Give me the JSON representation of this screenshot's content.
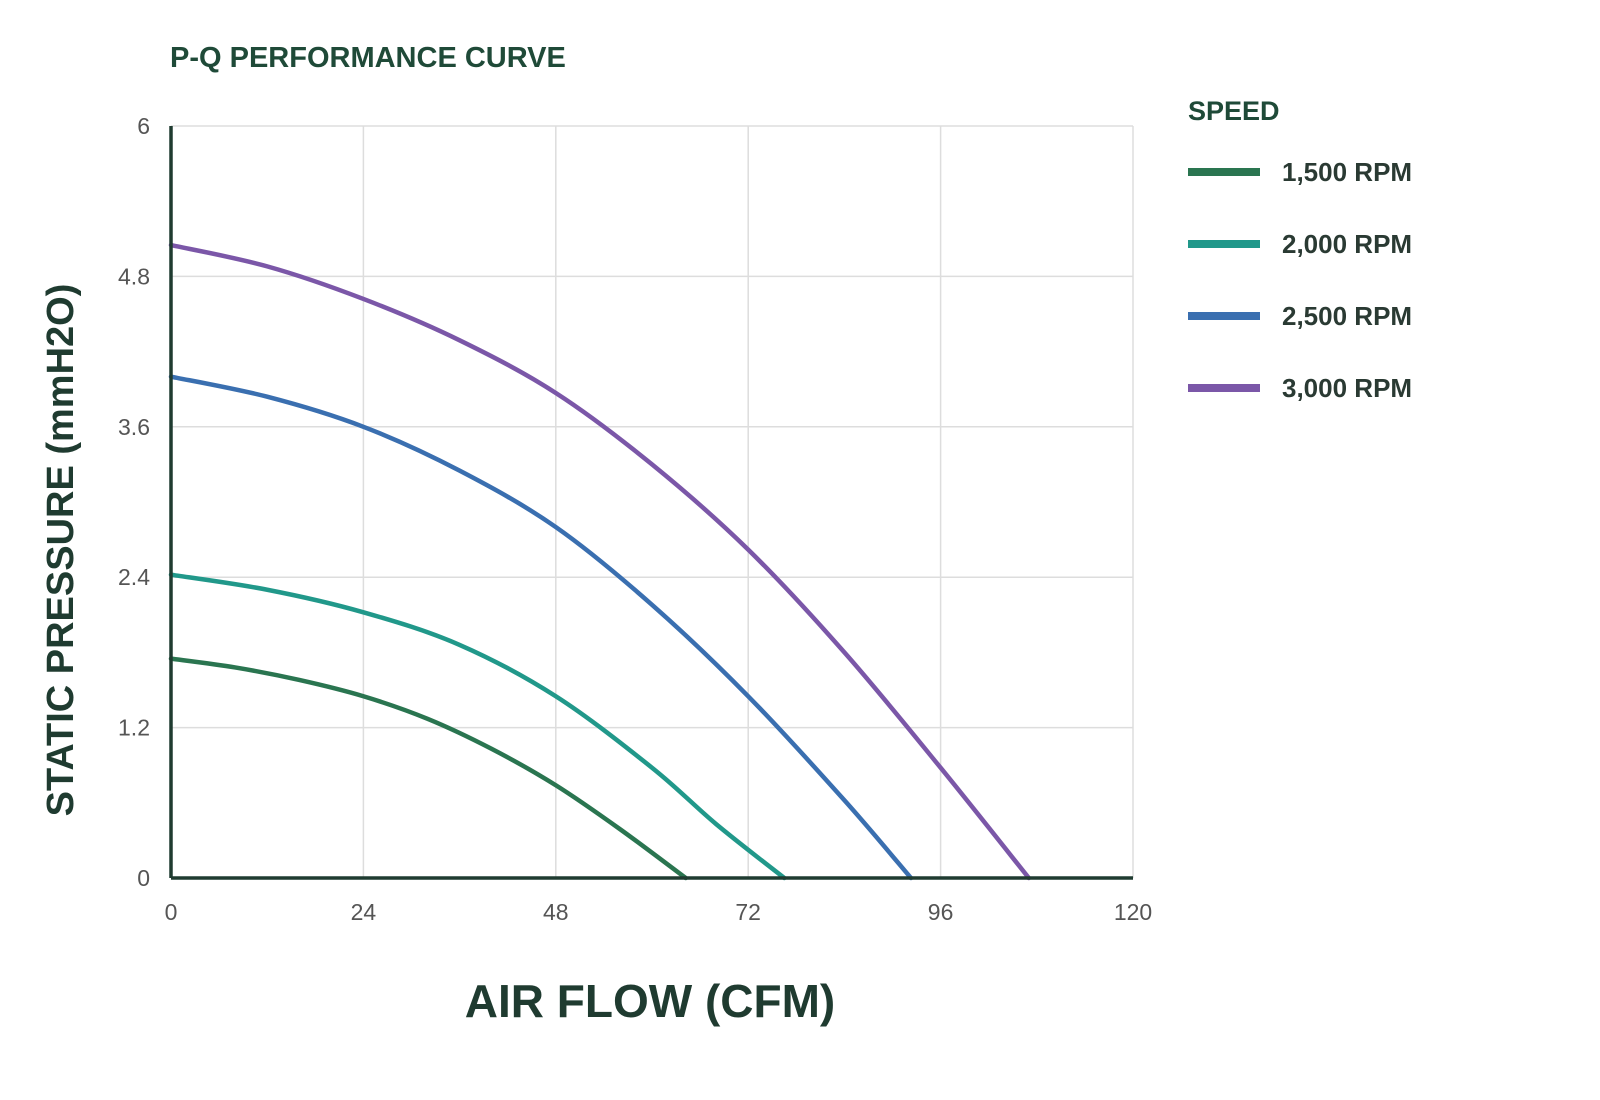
{
  "chart_data": {
    "type": "line",
    "title": "P-Q PERFORMANCE CURVE",
    "xlabel": "AIR FLOW (CFM)",
    "ylabel": "STATIC PRESSURE (mmH2O)",
    "xlim": [
      0,
      120
    ],
    "ylim": [
      0,
      6
    ],
    "x_ticks": [
      0,
      24,
      48,
      72,
      96,
      120
    ],
    "x_tick_labels": [
      "0",
      "24",
      "48",
      "72",
      "96",
      "120"
    ],
    "y_ticks": [
      0,
      1.2,
      2.4,
      3.6,
      4.8,
      6
    ],
    "y_tick_labels": [
      "0",
      "1.2",
      "2.4",
      "3.6",
      "4.8",
      "6"
    ],
    "grid": true,
    "legend": {
      "title": "SPEED",
      "position": "right"
    },
    "series": [
      {
        "name": "1,500 RPM",
        "color": "#2a7550",
        "x": [
          0,
          8,
          16,
          24,
          32,
          40,
          48,
          56,
          64.2
        ],
        "y": [
          1.75,
          1.68,
          1.58,
          1.45,
          1.27,
          1.03,
          0.74,
          0.39,
          0
        ]
      },
      {
        "name": "2,000 RPM",
        "color": "#21988a",
        "x": [
          0,
          12,
          24,
          36,
          48,
          60,
          68,
          76.5
        ],
        "y": [
          2.42,
          2.3,
          2.12,
          1.86,
          1.45,
          0.88,
          0.43,
          0
        ]
      },
      {
        "name": "2,500 RPM",
        "color": "#3a6fb0",
        "x": [
          0,
          12,
          24,
          36,
          48,
          60,
          72,
          84,
          92.3
        ],
        "y": [
          4.0,
          3.84,
          3.6,
          3.25,
          2.8,
          2.18,
          1.45,
          0.62,
          0
        ]
      },
      {
        "name": "3,000 RPM",
        "color": "#7b57a8",
        "x": [
          0,
          12,
          24,
          36,
          48,
          60,
          72,
          84,
          96,
          107
        ],
        "y": [
          5.05,
          4.88,
          4.62,
          4.29,
          3.87,
          3.3,
          2.62,
          1.8,
          0.88,
          0
        ]
      }
    ]
  }
}
